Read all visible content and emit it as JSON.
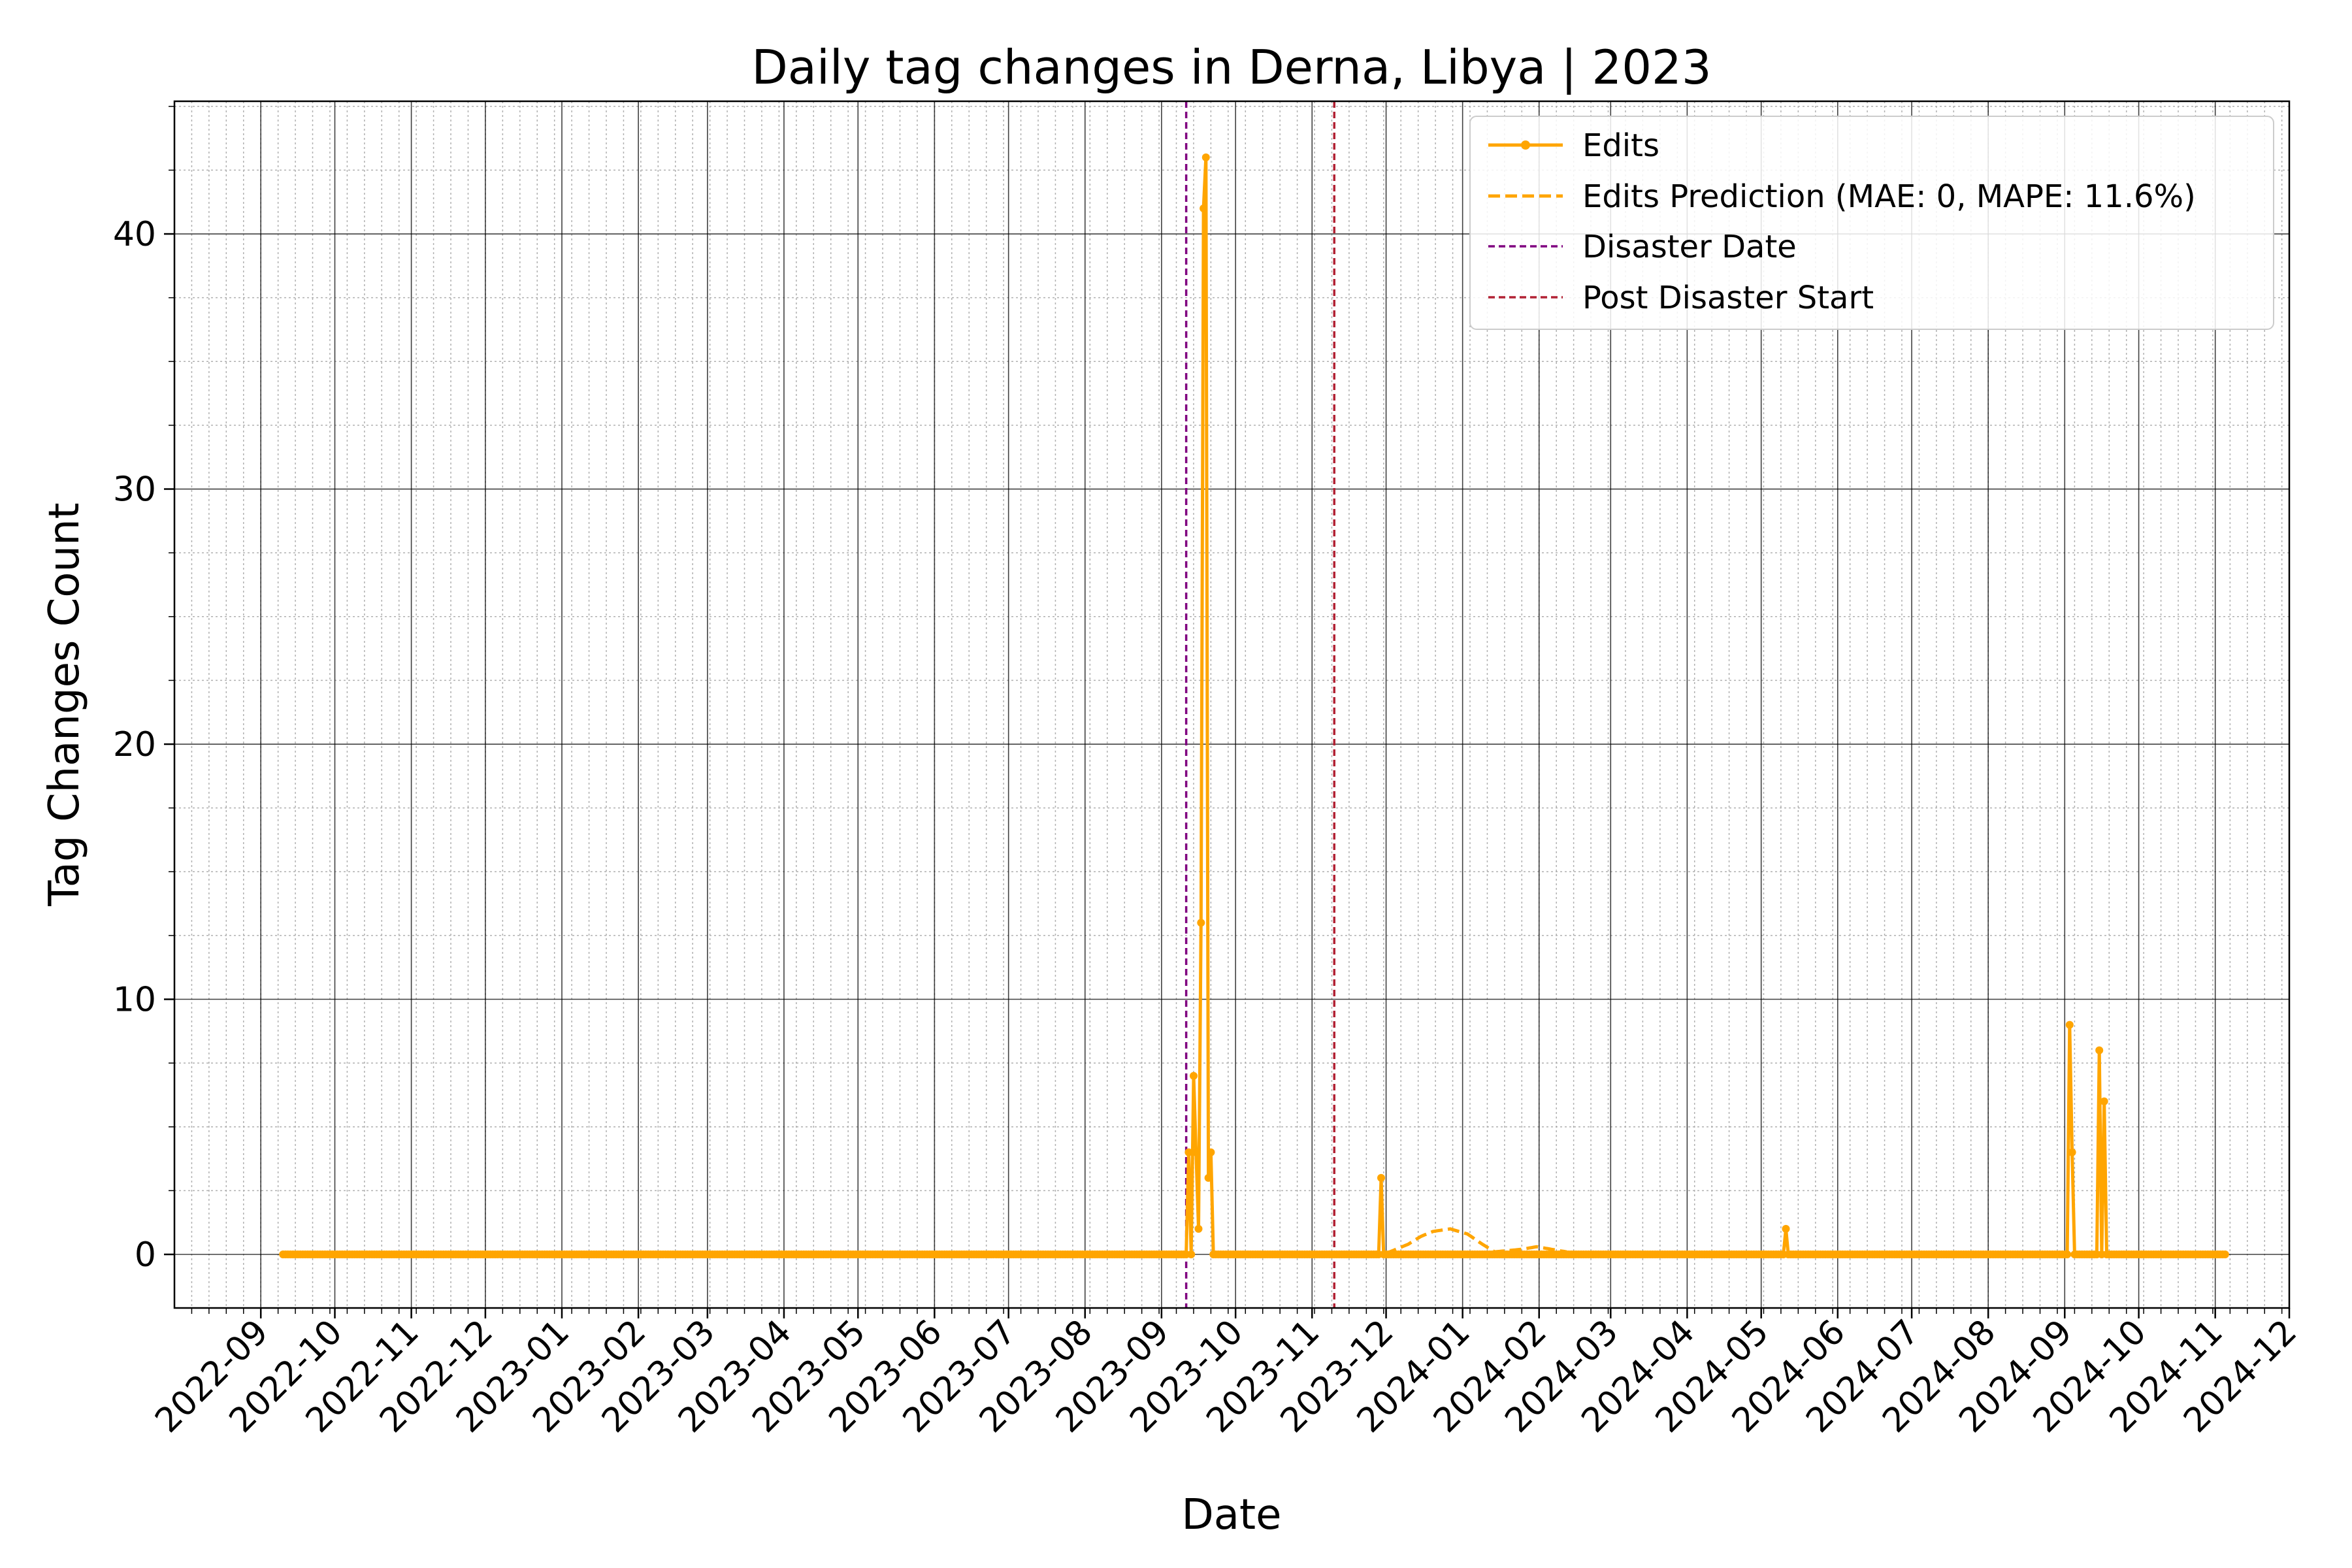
{
  "chart_data": {
    "type": "line",
    "title": "Daily tag changes in Derna, Libya | 2023",
    "xlabel": "Date",
    "ylabel": "Tag Changes Count",
    "xlim": [
      "2022-07-28",
      "2024-12-01"
    ],
    "ylim": [
      -2.1,
      45.2
    ],
    "grid": true,
    "x_ticks": [
      "2022-09",
      "2022-10",
      "2022-11",
      "2022-12",
      "2023-01",
      "2023-02",
      "2023-03",
      "2023-04",
      "2023-05",
      "2023-06",
      "2023-07",
      "2023-08",
      "2023-09",
      "2023-10",
      "2023-11",
      "2023-12",
      "2024-01",
      "2024-02",
      "2024-03",
      "2024-04",
      "2024-05",
      "2024-06",
      "2024-07",
      "2024-08",
      "2024-09",
      "2024-10",
      "2024-11",
      "2024-12"
    ],
    "y_ticks": [
      0,
      10,
      20,
      30,
      40
    ],
    "legend": {
      "position": "top-right",
      "entries": [
        {
          "label": "Edits",
          "style": "solid-marker",
          "color": "#ffa500"
        },
        {
          "label": "Edits Prediction (MAE: 0, MAPE: 11.6%)",
          "style": "dashed",
          "color": "#ffa500"
        },
        {
          "label": "Disaster Date",
          "style": "dashed",
          "color": "#800080"
        },
        {
          "label": "Post Disaster Start",
          "style": "dashed",
          "color": "#b22234"
        }
      ]
    },
    "vlines": [
      {
        "name": "Disaster Date",
        "x": "2023-09-11",
        "color": "#800080"
      },
      {
        "name": "Post Disaster Start",
        "x": "2023-11-10",
        "color": "#b22234"
      }
    ],
    "series": [
      {
        "name": "Edits",
        "color": "#ffa500",
        "start": "2022-09-10",
        "end": "2024-11-05",
        "baseline": 0,
        "points": [
          {
            "x": "2023-09-12",
            "y": 4
          },
          {
            "x": "2023-09-14",
            "y": 7
          },
          {
            "x": "2023-09-15",
            "y": 4
          },
          {
            "x": "2023-09-16",
            "y": 1
          },
          {
            "x": "2023-09-17",
            "y": 13
          },
          {
            "x": "2023-09-18",
            "y": 41
          },
          {
            "x": "2023-09-19",
            "y": 43
          },
          {
            "x": "2023-09-20",
            "y": 3
          },
          {
            "x": "2023-09-21",
            "y": 4
          },
          {
            "x": "2023-11-29",
            "y": 3
          },
          {
            "x": "2024-05-11",
            "y": 1
          },
          {
            "x": "2024-09-03",
            "y": 9
          },
          {
            "x": "2024-09-04",
            "y": 4
          },
          {
            "x": "2024-09-15",
            "y": 8
          },
          {
            "x": "2024-09-17",
            "y": 6
          }
        ]
      },
      {
        "name": "Edits Prediction (MAE: 0, MAPE: 11.6%)",
        "color": "#ffa500",
        "dashed": true,
        "start": "2023-11-10",
        "end": "2024-11-05",
        "points": [
          {
            "x": "2023-12-10",
            "y": 0.4
          },
          {
            "x": "2023-12-15",
            "y": 0.7
          },
          {
            "x": "2023-12-20",
            "y": 0.9
          },
          {
            "x": "2023-12-27",
            "y": 1.0
          },
          {
            "x": "2024-01-03",
            "y": 0.8
          },
          {
            "x": "2024-01-09",
            "y": 0.4
          },
          {
            "x": "2024-01-14",
            "y": 0.1
          },
          {
            "x": "2024-01-25",
            "y": 0.2
          },
          {
            "x": "2024-01-31",
            "y": 0.3
          },
          {
            "x": "2024-02-06",
            "y": 0.2
          },
          {
            "x": "2024-02-12",
            "y": 0.1
          }
        ]
      }
    ]
  }
}
